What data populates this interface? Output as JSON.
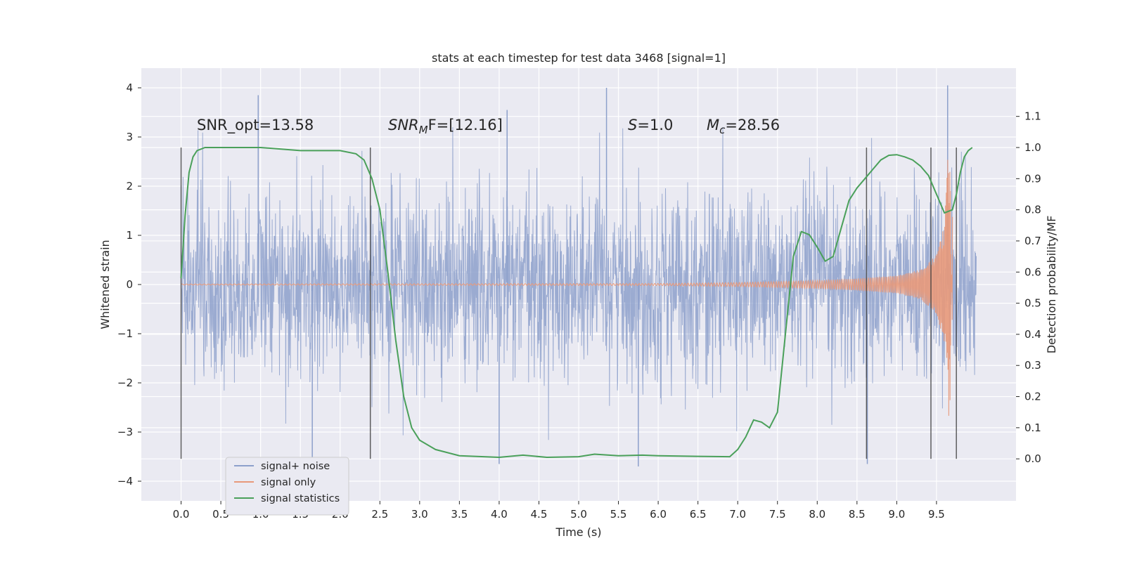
{
  "chart_data": {
    "type": "line",
    "title": "stats at each timestep for test data 3468 [signal=1]",
    "xlabel": "Time (s)",
    "ylabel": "Whitened strain",
    "y2label": "Detection probability/MF",
    "xlim": [
      -0.5,
      10.5
    ],
    "ylim": [
      -4.4,
      4.4
    ],
    "y2lim": [
      -0.135,
      1.255
    ],
    "x_ticks": [
      0.0,
      0.5,
      1.0,
      1.5,
      2.0,
      2.5,
      3.0,
      3.5,
      4.0,
      4.5,
      5.0,
      5.5,
      6.0,
      6.5,
      7.0,
      7.5,
      8.0,
      8.5,
      9.0,
      9.5
    ],
    "x_tick_labels": [
      "0.0",
      "0.5",
      "1.0",
      "1.5",
      "2.0",
      "2.5",
      "3.0",
      "3.5",
      "4.0",
      "4.5",
      "5.0",
      "5.5",
      "6.0",
      "6.5",
      "7.0",
      "7.5",
      "8.0",
      "8.5",
      "9.0",
      "9.5"
    ],
    "y_ticks": [
      -4,
      -3,
      -2,
      -1,
      0,
      1,
      2,
      3,
      4
    ],
    "y_tick_labels": [
      "−4",
      "−3",
      "−2",
      "−1",
      "0",
      "1",
      "2",
      "3",
      "4"
    ],
    "y2_ticks": [
      0.0,
      0.1,
      0.2,
      0.3,
      0.4,
      0.5,
      0.6,
      0.7,
      0.8,
      0.9,
      1.0,
      1.1
    ],
    "y2_tick_labels": [
      "0.0",
      "0.1",
      "0.2",
      "0.3",
      "0.4",
      "0.5",
      "0.6",
      "0.7",
      "0.8",
      "0.9",
      "1.0",
      "1.1"
    ],
    "grid": true,
    "legend_position": "lower-left",
    "annotations": {
      "snr_opt": "SNR_opt=13.58",
      "snr_mf_main": "SNR",
      "snr_mf_sub": "M",
      "snr_mf_rest": "F=[12.16]",
      "s_main": "S",
      "s_rest": "=1.0",
      "mc_main": "M",
      "mc_sub": "c",
      "mc_rest": "=28.56"
    },
    "vertical_lines_x": [
      0.0,
      2.38,
      8.62,
      9.43,
      9.75
    ],
    "series": [
      {
        "name": "signal+ noise",
        "color": "#8da0cb",
        "axis": "left",
        "style": "dense noise trace",
        "x_range": [
          0.0,
          10.0
        ],
        "envelope_upper": 2.2,
        "envelope_lower": -2.2,
        "peaks": [
          {
            "x": 0.97,
            "y": 3.85
          },
          {
            "x": 4.1,
            "y": 3.55
          },
          {
            "x": 5.35,
            "y": 4.0
          },
          {
            "x": 9.64,
            "y": 4.05
          },
          {
            "x": 4.0,
            "y": -3.65
          },
          {
            "x": 5.75,
            "y": -3.7
          },
          {
            "x": 8.63,
            "y": -3.65
          },
          {
            "x": 1.65,
            "y": -3.55
          }
        ]
      },
      {
        "name": "signal only",
        "color": "#e8997a",
        "axis": "left",
        "style": "chirp",
        "x": [
          0.0,
          6.0,
          7.0,
          8.0,
          8.5,
          9.0,
          9.3,
          9.5,
          9.6,
          9.65,
          9.7
        ],
        "amplitude": [
          0.01,
          0.02,
          0.04,
          0.08,
          0.12,
          0.18,
          0.3,
          0.6,
          1.2,
          2.8,
          1.8
        ]
      },
      {
        "name": "signal statistics",
        "color": "#4aa05a",
        "axis": "right",
        "x": [
          0.0,
          0.05,
          0.1,
          0.15,
          0.2,
          0.3,
          0.5,
          1.0,
          1.5,
          2.0,
          2.2,
          2.3,
          2.4,
          2.5,
          2.6,
          2.7,
          2.8,
          2.9,
          3.0,
          3.2,
          3.5,
          4.0,
          4.3,
          4.6,
          5.0,
          5.2,
          5.5,
          5.8,
          6.0,
          6.5,
          6.9,
          7.0,
          7.1,
          7.2,
          7.3,
          7.4,
          7.5,
          7.6,
          7.7,
          7.8,
          7.9,
          8.0,
          8.1,
          8.2,
          8.3,
          8.4,
          8.5,
          8.6,
          8.7,
          8.8,
          8.9,
          9.0,
          9.1,
          9.2,
          9.3,
          9.4,
          9.5,
          9.6,
          9.7,
          9.75,
          9.8,
          9.85,
          9.9,
          9.95
        ],
        "y": [
          0.58,
          0.78,
          0.92,
          0.97,
          0.99,
          1.0,
          1.0,
          1.0,
          0.99,
          0.99,
          0.98,
          0.96,
          0.9,
          0.8,
          0.6,
          0.38,
          0.2,
          0.1,
          0.06,
          0.03,
          0.01,
          0.005,
          0.012,
          0.005,
          0.007,
          0.015,
          0.01,
          0.012,
          0.01,
          0.008,
          0.007,
          0.03,
          0.07,
          0.125,
          0.118,
          0.1,
          0.15,
          0.4,
          0.65,
          0.73,
          0.72,
          0.68,
          0.635,
          0.65,
          0.74,
          0.83,
          0.87,
          0.9,
          0.93,
          0.96,
          0.975,
          0.977,
          0.97,
          0.96,
          0.94,
          0.91,
          0.85,
          0.79,
          0.8,
          0.85,
          0.92,
          0.97,
          0.99,
          1.0
        ]
      }
    ]
  }
}
